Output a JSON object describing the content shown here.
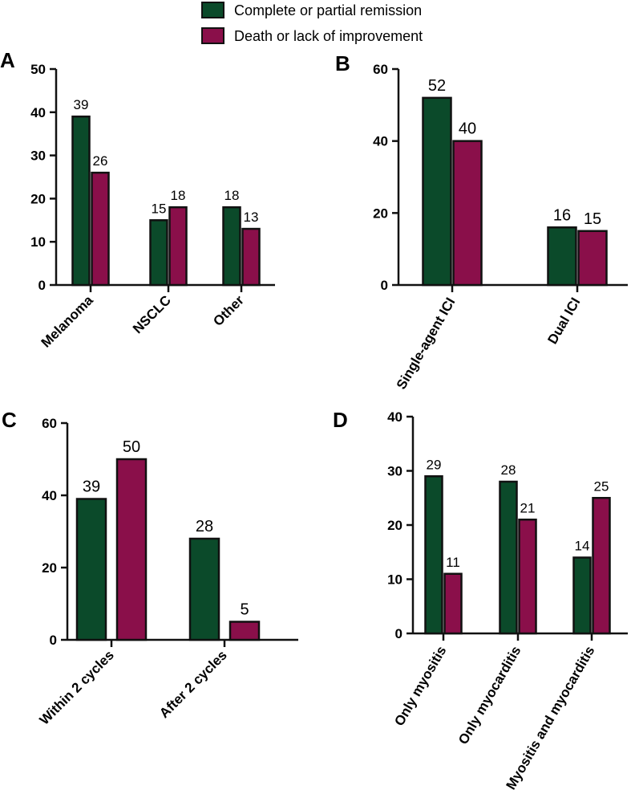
{
  "legend": {
    "items": [
      {
        "label": "Complete or partial remission",
        "color": "#0b4a2a"
      },
      {
        "label": "Death or lack of improvement",
        "color": "#8a0f4a"
      }
    ]
  },
  "chart_data": [
    {
      "type": "bar",
      "panel": "A",
      "categories": [
        "Melanoma",
        "NSCLC",
        "Other"
      ],
      "series": [
        {
          "name": "Complete or partial remission",
          "values": [
            39,
            15,
            18
          ]
        },
        {
          "name": "Death or lack of improvement",
          "values": [
            26,
            18,
            13
          ]
        }
      ],
      "ylim": [
        0,
        50
      ],
      "yticks": [
        0,
        10,
        20,
        30,
        40,
        50
      ],
      "xlabel": "",
      "ylabel": ""
    },
    {
      "type": "bar",
      "panel": "B",
      "categories": [
        "Single-agent ICI",
        "Dual ICI"
      ],
      "series": [
        {
          "name": "Complete or partial remission",
          "values": [
            52,
            16
          ]
        },
        {
          "name": "Death or lack of improvement",
          "values": [
            40,
            15
          ]
        }
      ],
      "ylim": [
        0,
        60
      ],
      "yticks": [
        0,
        20,
        40,
        60
      ],
      "xlabel": "",
      "ylabel": ""
    },
    {
      "type": "bar",
      "panel": "C",
      "categories": [
        "Within 2 cycles",
        "After 2 cycles"
      ],
      "series": [
        {
          "name": "Complete or partial remission",
          "values": [
            39,
            28
          ]
        },
        {
          "name": "Death or lack of improvement",
          "values": [
            50,
            5
          ]
        }
      ],
      "ylim": [
        0,
        60
      ],
      "yticks": [
        0,
        20,
        40,
        60
      ],
      "xlabel": "",
      "ylabel": ""
    },
    {
      "type": "bar",
      "panel": "D",
      "categories": [
        "Only myositis",
        "Only myocarditis",
        "Myositis and myocarditis"
      ],
      "series": [
        {
          "name": "Complete or partial remission",
          "values": [
            29,
            28,
            14
          ]
        },
        {
          "name": "Death or lack of improvement",
          "values": [
            11,
            21,
            25
          ]
        }
      ],
      "ylim": [
        0,
        40
      ],
      "yticks": [
        0,
        10,
        20,
        30,
        40
      ],
      "xlabel": "",
      "ylabel": ""
    }
  ]
}
